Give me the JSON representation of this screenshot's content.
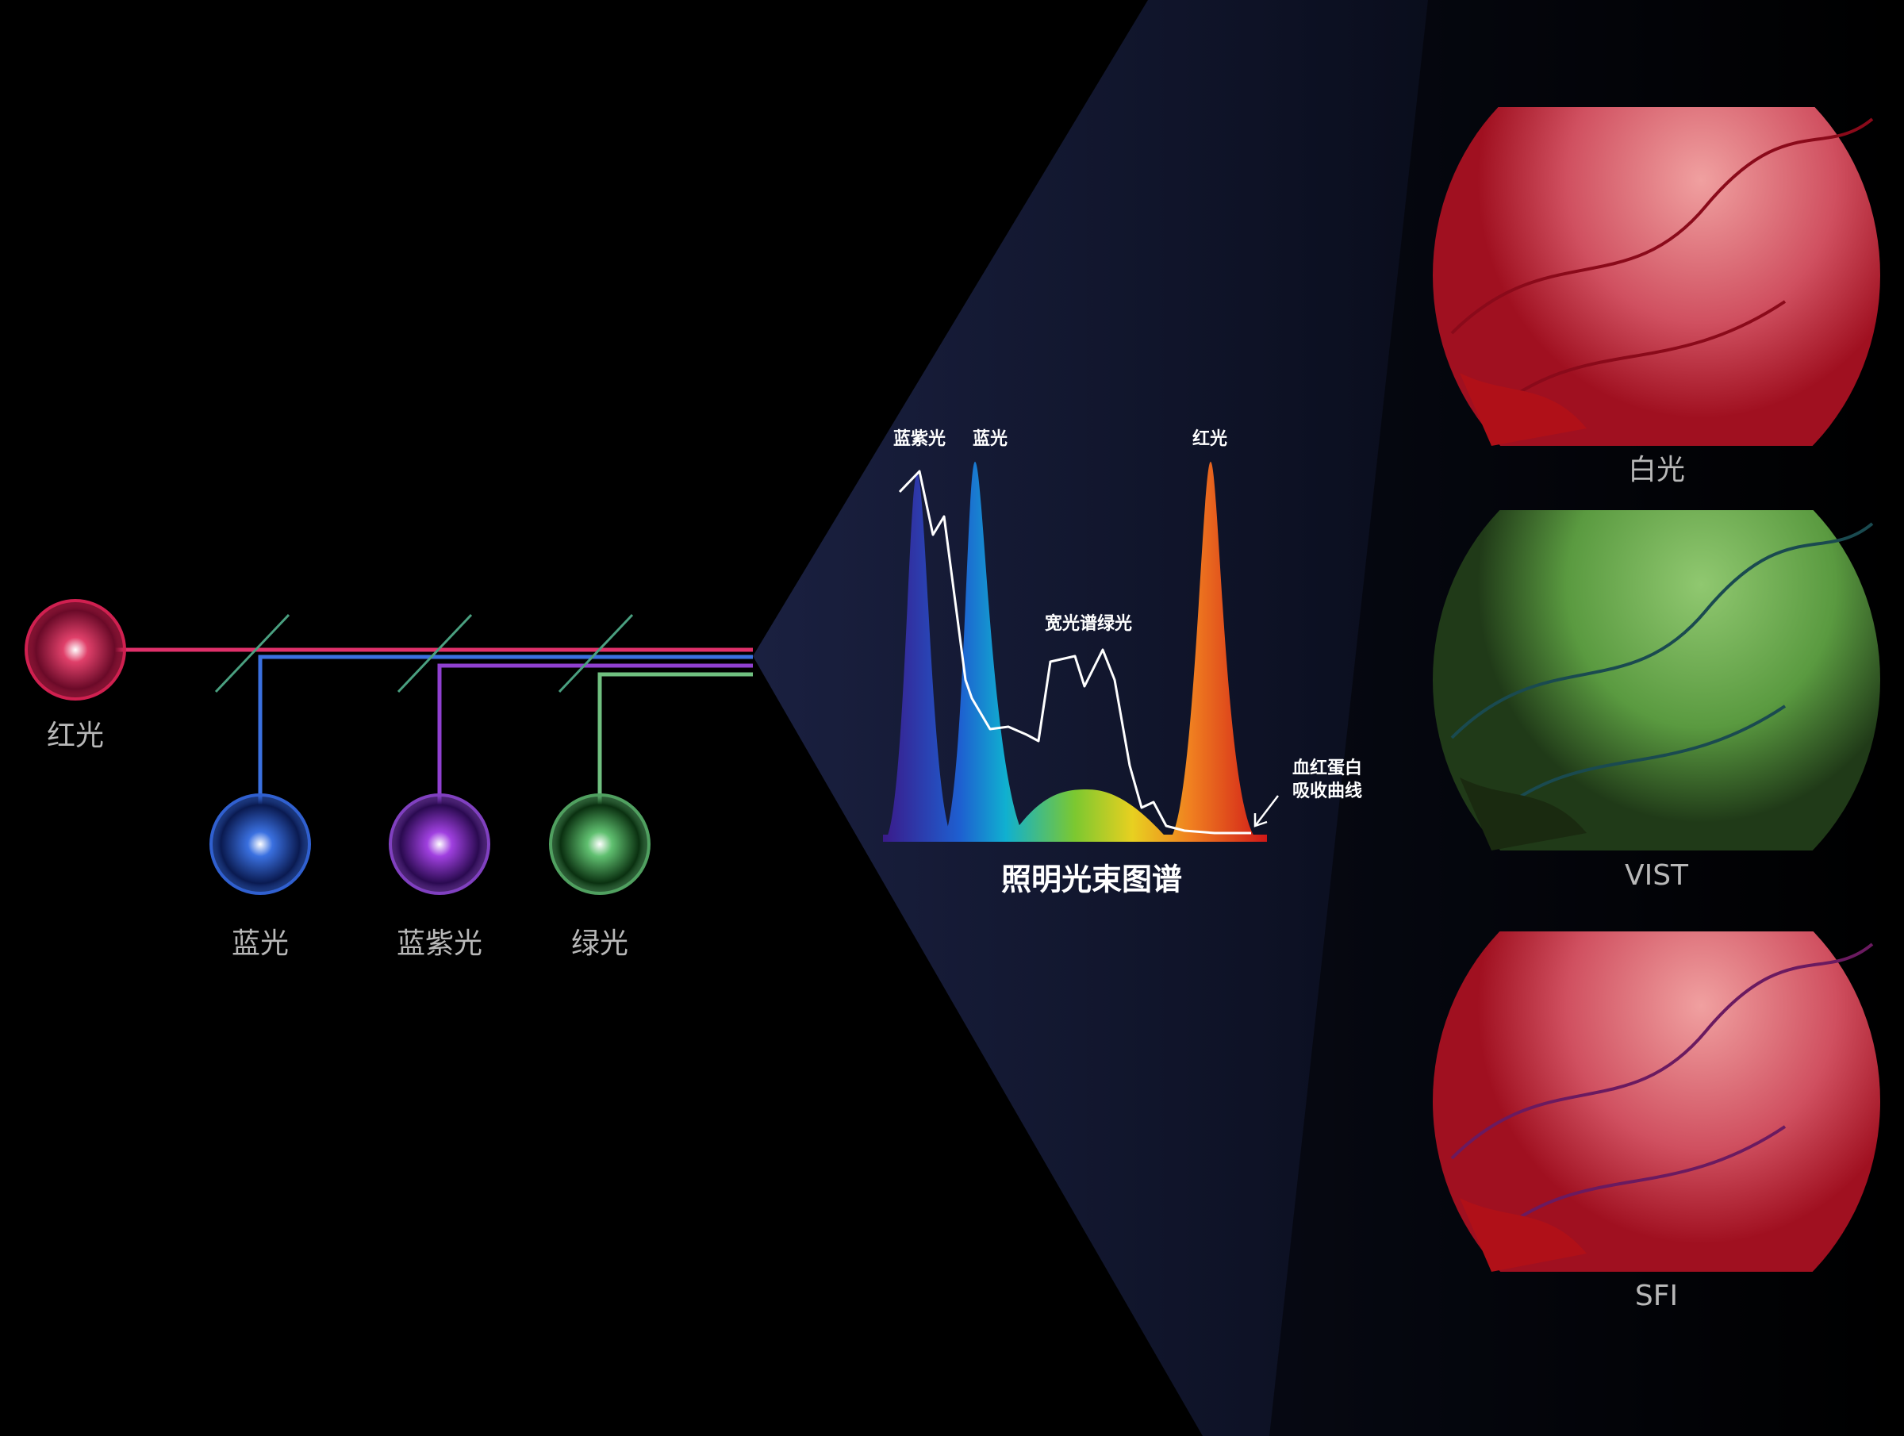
{
  "sources": [
    {
      "label": "红光"
    },
    {
      "label": "蓝光"
    },
    {
      "label": "蓝紫光"
    },
    {
      "label": "绿光"
    }
  ],
  "spectrum": {
    "peak_labels": [
      "蓝紫光",
      "蓝光",
      "宽光谱绿光",
      "红光"
    ],
    "annotation": [
      "血红蛋白",
      "吸收曲线"
    ],
    "title": "照明光束图谱"
  },
  "images": [
    {
      "label": "白光"
    },
    {
      "label": "VIST"
    },
    {
      "label": "SFI"
    }
  ]
}
